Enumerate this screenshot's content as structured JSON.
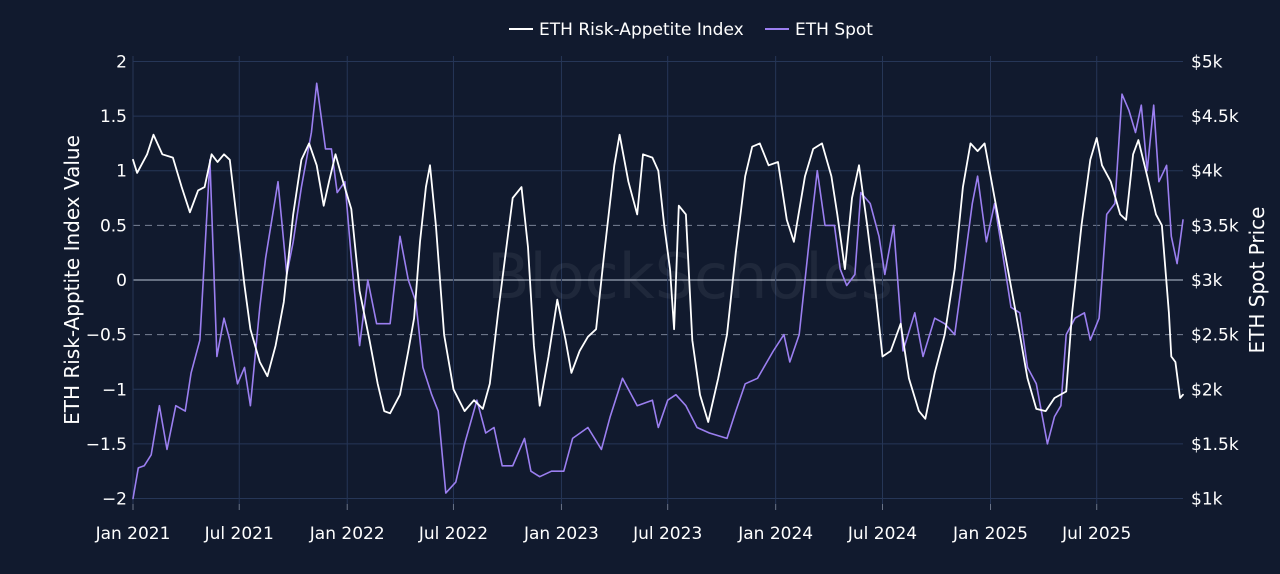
{
  "chart_data": {
    "type": "line",
    "watermark": "BlockScholes",
    "legend_position": "top-center",
    "grid": true,
    "x_tick_labels": [
      "Jan 2021",
      "Jul 2021",
      "Jan 2022",
      "Jul 2022",
      "Jan 2023",
      "Jul 2023",
      "Jan 2024",
      "Jul 2024",
      "Jan 2025",
      "Jul 2025"
    ],
    "x_range": [
      "2021-01-01",
      "2025-11-25"
    ],
    "y_left": {
      "label": "ETH Risk-Apptite Index Value",
      "range": [
        -2.05,
        2.05
      ],
      "tick_values": [
        2,
        1.5,
        1,
        0.5,
        0,
        -0.5,
        -1,
        -1.5,
        -2
      ],
      "tick_labels": [
        "2",
        "1.5",
        "1",
        "0.5",
        "0",
        "−0.5",
        "−1",
        "−1.5",
        "−2"
      ]
    },
    "y_right": {
      "label": "ETH Spot Price",
      "range": [
        950,
        5050
      ],
      "tick_values": [
        5000,
        4500,
        4000,
        3500,
        3000,
        2500,
        2000,
        1500,
        1000
      ],
      "tick_labels": [
        "$5k",
        "$4.5k",
        "$4k",
        "$3.5k",
        "$3k",
        "$2.5k",
        "$2k",
        "$1.5k",
        "$1k"
      ]
    },
    "series": [
      {
        "name": "ETH Risk-Appetite Index",
        "axis": "left",
        "color": "#ffffff",
        "points": [
          [
            "2021-01-01",
            1.1
          ],
          [
            "2021-01-08",
            0.98
          ],
          [
            "2021-01-25",
            1.15
          ],
          [
            "2021-02-05",
            1.33
          ],
          [
            "2021-02-20",
            1.15
          ],
          [
            "2021-03-10",
            1.12
          ],
          [
            "2021-03-25",
            0.85
          ],
          [
            "2021-04-08",
            0.62
          ],
          [
            "2021-04-22",
            0.82
          ],
          [
            "2021-05-03",
            0.85
          ],
          [
            "2021-05-15",
            1.15
          ],
          [
            "2021-05-25",
            1.08
          ],
          [
            "2021-06-05",
            1.15
          ],
          [
            "2021-06-15",
            1.1
          ],
          [
            "2021-06-28",
            0.5
          ],
          [
            "2021-07-10",
            -0.05
          ],
          [
            "2021-07-20",
            -0.45
          ],
          [
            "2021-08-05",
            -0.75
          ],
          [
            "2021-08-18",
            -0.88
          ],
          [
            "2021-09-01",
            -0.6
          ],
          [
            "2021-09-15",
            -0.2
          ],
          [
            "2021-10-01",
            0.6
          ],
          [
            "2021-10-15",
            1.1
          ],
          [
            "2021-10-28",
            1.25
          ],
          [
            "2021-11-10",
            1.05
          ],
          [
            "2021-11-22",
            0.68
          ],
          [
            "2021-12-01",
            0.9
          ],
          [
            "2021-12-12",
            1.15
          ],
          [
            "2021-12-25",
            0.9
          ],
          [
            "2022-01-08",
            0.65
          ],
          [
            "2022-01-22",
            -0.1
          ],
          [
            "2022-02-08",
            -0.55
          ],
          [
            "2022-02-22",
            -0.95
          ],
          [
            "2022-03-05",
            -1.2
          ],
          [
            "2022-03-15",
            -1.22
          ],
          [
            "2022-04-01",
            -1.05
          ],
          [
            "2022-04-15",
            -0.65
          ],
          [
            "2022-04-25",
            -0.35
          ],
          [
            "2022-05-05",
            0.35
          ],
          [
            "2022-05-15",
            0.85
          ],
          [
            "2022-05-22",
            1.05
          ],
          [
            "2022-06-01",
            0.5
          ],
          [
            "2022-06-15",
            -0.5
          ],
          [
            "2022-07-01",
            -1.0
          ],
          [
            "2022-07-20",
            -1.2
          ],
          [
            "2022-08-05",
            -1.1
          ],
          [
            "2022-08-20",
            -1.18
          ],
          [
            "2022-09-01",
            -0.95
          ],
          [
            "2022-09-15",
            -0.3
          ],
          [
            "2022-09-28",
            0.25
          ],
          [
            "2022-10-10",
            0.75
          ],
          [
            "2022-10-25",
            0.85
          ],
          [
            "2022-11-05",
            0.3
          ],
          [
            "2022-11-15",
            -0.6
          ],
          [
            "2022-11-25",
            -1.15
          ],
          [
            "2022-12-10",
            -0.7
          ],
          [
            "2022-12-25",
            -0.18
          ],
          [
            "2023-01-08",
            -0.55
          ],
          [
            "2023-01-18",
            -0.85
          ],
          [
            "2023-02-01",
            -0.65
          ],
          [
            "2023-02-15",
            -0.52
          ],
          [
            "2023-03-01",
            -0.45
          ],
          [
            "2023-03-15",
            0.25
          ],
          [
            "2023-04-01",
            1.05
          ],
          [
            "2023-04-10",
            1.33
          ],
          [
            "2023-04-25",
            0.9
          ],
          [
            "2023-05-10",
            0.6
          ],
          [
            "2023-05-20",
            1.15
          ],
          [
            "2023-06-05",
            1.12
          ],
          [
            "2023-06-15",
            1.0
          ],
          [
            "2023-06-25",
            0.5
          ],
          [
            "2023-07-05",
            0.1
          ],
          [
            "2023-07-12",
            -0.45
          ],
          [
            "2023-07-20",
            0.68
          ],
          [
            "2023-08-01",
            0.6
          ],
          [
            "2023-08-12",
            -0.55
          ],
          [
            "2023-08-25",
            -1.05
          ],
          [
            "2023-09-08",
            -1.3
          ],
          [
            "2023-09-25",
            -0.9
          ],
          [
            "2023-10-10",
            -0.5
          ],
          [
            "2023-10-25",
            0.25
          ],
          [
            "2023-11-10",
            0.95
          ],
          [
            "2023-11-22",
            1.22
          ],
          [
            "2023-12-05",
            1.25
          ],
          [
            "2023-12-20",
            1.05
          ],
          [
            "2024-01-05",
            1.08
          ],
          [
            "2024-01-20",
            0.55
          ],
          [
            "2024-02-01",
            0.35
          ],
          [
            "2024-02-20",
            0.95
          ],
          [
            "2024-03-05",
            1.2
          ],
          [
            "2024-03-20",
            1.25
          ],
          [
            "2024-04-05",
            0.95
          ],
          [
            "2024-04-15",
            0.6
          ],
          [
            "2024-04-28",
            0.1
          ],
          [
            "2024-05-10",
            0.75
          ],
          [
            "2024-05-22",
            1.05
          ],
          [
            "2024-06-05",
            0.5
          ],
          [
            "2024-06-20",
            -0.15
          ],
          [
            "2024-07-01",
            -0.7
          ],
          [
            "2024-07-15",
            -0.65
          ],
          [
            "2024-08-01",
            -0.4
          ],
          [
            "2024-08-15",
            -0.9
          ],
          [
            "2024-09-01",
            -1.2
          ],
          [
            "2024-09-12",
            -1.27
          ],
          [
            "2024-09-28",
            -0.85
          ],
          [
            "2024-10-15",
            -0.5
          ],
          [
            "2024-11-01",
            0.1
          ],
          [
            "2024-11-15",
            0.85
          ],
          [
            "2024-11-28",
            1.25
          ],
          [
            "2024-12-10",
            1.18
          ],
          [
            "2024-12-22",
            1.25
          ],
          [
            "2025-01-08",
            0.75
          ],
          [
            "2025-01-22",
            0.35
          ],
          [
            "2025-02-08",
            -0.15
          ],
          [
            "2025-02-20",
            -0.5
          ],
          [
            "2025-03-05",
            -0.9
          ],
          [
            "2025-03-20",
            -1.18
          ],
          [
            "2025-04-05",
            -1.2
          ],
          [
            "2025-04-20",
            -1.08
          ],
          [
            "2025-05-10",
            -1.02
          ],
          [
            "2025-05-20",
            -0.3
          ],
          [
            "2025-06-05",
            0.5
          ],
          [
            "2025-06-20",
            1.1
          ],
          [
            "2025-07-01",
            1.3
          ],
          [
            "2025-07-10",
            1.05
          ],
          [
            "2025-07-25",
            0.9
          ],
          [
            "2025-08-10",
            0.6
          ],
          [
            "2025-08-20",
            0.55
          ],
          [
            "2025-09-01",
            1.15
          ],
          [
            "2025-09-10",
            1.28
          ],
          [
            "2025-09-25",
            0.95
          ],
          [
            "2025-10-10",
            0.6
          ],
          [
            "2025-10-20",
            0.5
          ],
          [
            "2025-11-01",
            -0.3
          ],
          [
            "2025-11-05",
            -0.7
          ],
          [
            "2025-11-12",
            -0.75
          ],
          [
            "2025-11-20",
            -1.08
          ],
          [
            "2025-11-25",
            -1.05
          ]
        ]
      },
      {
        "name": "ETH Spot",
        "axis": "right",
        "color": "#9b7ff0",
        "points": [
          [
            "2021-01-01",
            1000
          ],
          [
            "2021-01-10",
            1280
          ],
          [
            "2021-01-20",
            1300
          ],
          [
            "2021-02-01",
            1400
          ],
          [
            "2021-02-15",
            1850
          ],
          [
            "2021-02-28",
            1450
          ],
          [
            "2021-03-15",
            1850
          ],
          [
            "2021-03-31",
            1800
          ],
          [
            "2021-04-10",
            2150
          ],
          [
            "2021-04-25",
            2450
          ],
          [
            "2021-05-12",
            4100
          ],
          [
            "2021-05-24",
            2300
          ],
          [
            "2021-06-05",
            2650
          ],
          [
            "2021-06-15",
            2450
          ],
          [
            "2021-06-28",
            2050
          ],
          [
            "2021-07-10",
            2200
          ],
          [
            "2021-07-20",
            1850
          ],
          [
            "2021-08-05",
            2750
          ],
          [
            "2021-08-15",
            3200
          ],
          [
            "2021-09-05",
            3900
          ],
          [
            "2021-09-20",
            3050
          ],
          [
            "2021-10-01",
            3350
          ],
          [
            "2021-10-15",
            3850
          ],
          [
            "2021-11-01",
            4350
          ],
          [
            "2021-11-10",
            4800
          ],
          [
            "2021-11-25",
            4200
          ],
          [
            "2021-12-05",
            4200
          ],
          [
            "2021-12-15",
            3800
          ],
          [
            "2021-12-28",
            3900
          ],
          [
            "2022-01-08",
            3200
          ],
          [
            "2022-01-22",
            2400
          ],
          [
            "2022-02-05",
            3000
          ],
          [
            "2022-02-20",
            2600
          ],
          [
            "2022-03-05",
            2600
          ],
          [
            "2022-03-15",
            2600
          ],
          [
            "2022-04-01",
            3400
          ],
          [
            "2022-04-15",
            3000
          ],
          [
            "2022-04-28",
            2800
          ],
          [
            "2022-05-10",
            2200
          ],
          [
            "2022-05-25",
            1950
          ],
          [
            "2022-06-05",
            1800
          ],
          [
            "2022-06-18",
            1050
          ],
          [
            "2022-07-05",
            1150
          ],
          [
            "2022-07-20",
            1500
          ],
          [
            "2022-08-10",
            1900
          ],
          [
            "2022-08-25",
            1600
          ],
          [
            "2022-09-08",
            1650
          ],
          [
            "2022-09-22",
            1300
          ],
          [
            "2022-10-10",
            1300
          ],
          [
            "2022-10-30",
            1550
          ],
          [
            "2022-11-10",
            1250
          ],
          [
            "2022-11-25",
            1200
          ],
          [
            "2022-12-15",
            1250
          ],
          [
            "2023-01-05",
            1250
          ],
          [
            "2023-01-20",
            1550
          ],
          [
            "2023-02-15",
            1650
          ],
          [
            "2023-03-10",
            1450
          ],
          [
            "2023-03-25",
            1750
          ],
          [
            "2023-04-15",
            2100
          ],
          [
            "2023-05-10",
            1850
          ],
          [
            "2023-06-05",
            1900
          ],
          [
            "2023-06-15",
            1650
          ],
          [
            "2023-07-01",
            1900
          ],
          [
            "2023-07-15",
            1950
          ],
          [
            "2023-08-01",
            1850
          ],
          [
            "2023-08-20",
            1650
          ],
          [
            "2023-09-10",
            1600
          ],
          [
            "2023-10-10",
            1550
          ],
          [
            "2023-10-25",
            1800
          ],
          [
            "2023-11-10",
            2050
          ],
          [
            "2023-12-01",
            2100
          ],
          [
            "2023-12-28",
            2350
          ],
          [
            "2024-01-15",
            2500
          ],
          [
            "2024-01-25",
            2250
          ],
          [
            "2024-02-10",
            2500
          ],
          [
            "2024-02-28",
            3400
          ],
          [
            "2024-03-12",
            4000
          ],
          [
            "2024-03-25",
            3500
          ],
          [
            "2024-04-10",
            3500
          ],
          [
            "2024-04-20",
            3100
          ],
          [
            "2024-05-01",
            2950
          ],
          [
            "2024-05-15",
            3050
          ],
          [
            "2024-05-25",
            3800
          ],
          [
            "2024-06-10",
            3700
          ],
          [
            "2024-06-25",
            3400
          ],
          [
            "2024-07-05",
            3050
          ],
          [
            "2024-07-20",
            3500
          ],
          [
            "2024-08-05",
            2350
          ],
          [
            "2024-08-25",
            2700
          ],
          [
            "2024-09-08",
            2300
          ],
          [
            "2024-09-28",
            2650
          ],
          [
            "2024-10-15",
            2600
          ],
          [
            "2024-11-01",
            2500
          ],
          [
            "2024-11-15",
            3050
          ],
          [
            "2024-12-01",
            3700
          ],
          [
            "2024-12-10",
            3950
          ],
          [
            "2024-12-25",
            3350
          ],
          [
            "2025-01-08",
            3700
          ],
          [
            "2025-01-20",
            3300
          ],
          [
            "2025-02-05",
            2750
          ],
          [
            "2025-02-20",
            2700
          ],
          [
            "2025-03-05",
            2200
          ],
          [
            "2025-03-20",
            2050
          ],
          [
            "2025-04-08",
            1500
          ],
          [
            "2025-04-20",
            1750
          ],
          [
            "2025-05-01",
            1850
          ],
          [
            "2025-05-10",
            2500
          ],
          [
            "2025-05-25",
            2650
          ],
          [
            "2025-06-10",
            2700
          ],
          [
            "2025-06-20",
            2450
          ],
          [
            "2025-07-05",
            2650
          ],
          [
            "2025-07-18",
            3600
          ],
          [
            "2025-08-01",
            3700
          ],
          [
            "2025-08-13",
            4700
          ],
          [
            "2025-08-25",
            4550
          ],
          [
            "2025-09-05",
            4350
          ],
          [
            "2025-09-15",
            4600
          ],
          [
            "2025-09-25",
            4000
          ],
          [
            "2025-10-06",
            4600
          ],
          [
            "2025-10-15",
            3900
          ],
          [
            "2025-10-28",
            4050
          ],
          [
            "2025-11-05",
            3400
          ],
          [
            "2025-11-15",
            3150
          ],
          [
            "2025-11-25",
            3550
          ]
        ]
      }
    ]
  }
}
